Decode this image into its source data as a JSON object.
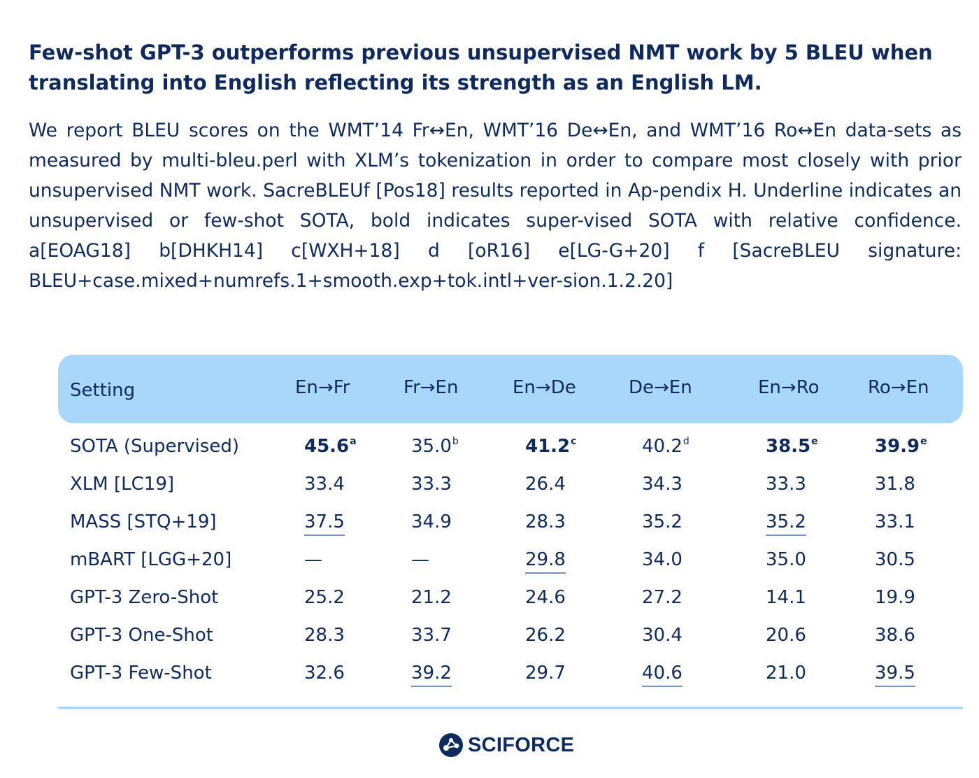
{
  "headline": "Few-shot GPT-3 outperforms previous unsupervised NMT work by 5 BLEU when translating into English reflecting its strength as an English LM.",
  "description": "We report BLEU scores on the WMT’14 Fr↔En, WMT’16 De↔En, and WMT’16 Ro↔En data-sets as measured by multi-bleu.perl with XLM’s tokenization in order to compare most closely with prior unsupervised NMT work. SacreBLEUf [Pos18] results reported in Ap-pendix H. Underline indicates an unsupervised or few-shot SOTA, bold indicates super-vised SOTA with relative confidence. a[EOAG18] b[DHKH14] c[WXH+18] d [oR16] e[LG-G+20] f [SacreBLEU signature: BLEU+case.mixed+numrefs.1+smooth.exp+tok.intl+ver-sion.1.2.20]",
  "table": {
    "headers": [
      "Setting",
      "En→Fr",
      "Fr→En",
      "En→De",
      "De→En",
      "En→Ro",
      "Ro→En"
    ],
    "rows": [
      {
        "setting": "SOTA (Supervised)",
        "cells": [
          {
            "value": "45.6",
            "sup": "a",
            "bold": true,
            "underline": false
          },
          {
            "value": "35.0",
            "sup": "b",
            "bold": false,
            "underline": false
          },
          {
            "value": "41.2",
            "sup": "c",
            "bold": true,
            "underline": false
          },
          {
            "value": "40.2",
            "sup": "d",
            "bold": false,
            "underline": false
          },
          {
            "value": "38.5",
            "sup": "e",
            "bold": true,
            "underline": false
          },
          {
            "value": "39.9",
            "sup": "e",
            "bold": true,
            "underline": false
          }
        ]
      },
      {
        "setting": "XLM [LC19]",
        "cells": [
          {
            "value": "33.4",
            "sup": "",
            "bold": false,
            "underline": false
          },
          {
            "value": "33.3",
            "sup": "",
            "bold": false,
            "underline": false
          },
          {
            "value": "26.4",
            "sup": "",
            "bold": false,
            "underline": false
          },
          {
            "value": "34.3",
            "sup": "",
            "bold": false,
            "underline": false
          },
          {
            "value": "33.3",
            "sup": "",
            "bold": false,
            "underline": false
          },
          {
            "value": "31.8",
            "sup": "",
            "bold": false,
            "underline": false
          }
        ]
      },
      {
        "setting": "MASS [STQ+19]",
        "cells": [
          {
            "value": "37.5",
            "sup": "",
            "bold": false,
            "underline": true
          },
          {
            "value": "34.9",
            "sup": "",
            "bold": false,
            "underline": false
          },
          {
            "value": "28.3",
            "sup": "",
            "bold": false,
            "underline": false
          },
          {
            "value": "35.2",
            "sup": "",
            "bold": false,
            "underline": false
          },
          {
            "value": "35.2",
            "sup": "",
            "bold": false,
            "underline": true
          },
          {
            "value": "33.1",
            "sup": "",
            "bold": false,
            "underline": false
          }
        ]
      },
      {
        "setting": "mBART [LGG+20]",
        "cells": [
          {
            "value": "—",
            "sup": "",
            "bold": false,
            "underline": false
          },
          {
            "value": "—",
            "sup": "",
            "bold": false,
            "underline": false
          },
          {
            "value": "29.8",
            "sup": "",
            "bold": false,
            "underline": true
          },
          {
            "value": "34.0",
            "sup": "",
            "bold": false,
            "underline": false
          },
          {
            "value": "35.0",
            "sup": "",
            "bold": false,
            "underline": false
          },
          {
            "value": "30.5",
            "sup": "",
            "bold": false,
            "underline": false
          }
        ]
      },
      {
        "setting": "GPT-3 Zero-Shot",
        "cells": [
          {
            "value": "25.2",
            "sup": "",
            "bold": false,
            "underline": false
          },
          {
            "value": "21.2",
            "sup": "",
            "bold": false,
            "underline": false
          },
          {
            "value": "24.6",
            "sup": "",
            "bold": false,
            "underline": false
          },
          {
            "value": "27.2",
            "sup": "",
            "bold": false,
            "underline": false
          },
          {
            "value": "14.1",
            "sup": "",
            "bold": false,
            "underline": false
          },
          {
            "value": "19.9",
            "sup": "",
            "bold": false,
            "underline": false
          }
        ]
      },
      {
        "setting": "GPT-3 One-Shot",
        "cells": [
          {
            "value": "28.3",
            "sup": "",
            "bold": false,
            "underline": false
          },
          {
            "value": "33.7",
            "sup": "",
            "bold": false,
            "underline": false
          },
          {
            "value": "26.2",
            "sup": "",
            "bold": false,
            "underline": false
          },
          {
            "value": "30.4",
            "sup": "",
            "bold": false,
            "underline": false
          },
          {
            "value": "20.6",
            "sup": "",
            "bold": false,
            "underline": false
          },
          {
            "value": "38.6",
            "sup": "",
            "bold": false,
            "underline": false
          }
        ]
      },
      {
        "setting": "GPT-3 Few-Shot",
        "cells": [
          {
            "value": "32.6",
            "sup": "",
            "bold": false,
            "underline": false
          },
          {
            "value": "39.2",
            "sup": "",
            "bold": false,
            "underline": true
          },
          {
            "value": "29.7",
            "sup": "",
            "bold": false,
            "underline": false
          },
          {
            "value": "40.6",
            "sup": "",
            "bold": false,
            "underline": true
          },
          {
            "value": "21.0",
            "sup": "",
            "bold": false,
            "underline": false
          },
          {
            "value": "39.5",
            "sup": "",
            "bold": false,
            "underline": true
          }
        ]
      }
    ]
  },
  "brand": {
    "name": "SCIFORCE",
    "logo_icon": "molecule-logo-icon"
  },
  "colors": {
    "text": "#0f2a5e",
    "header_bg": "#a9d6fb",
    "underline": "#6f93c6"
  }
}
